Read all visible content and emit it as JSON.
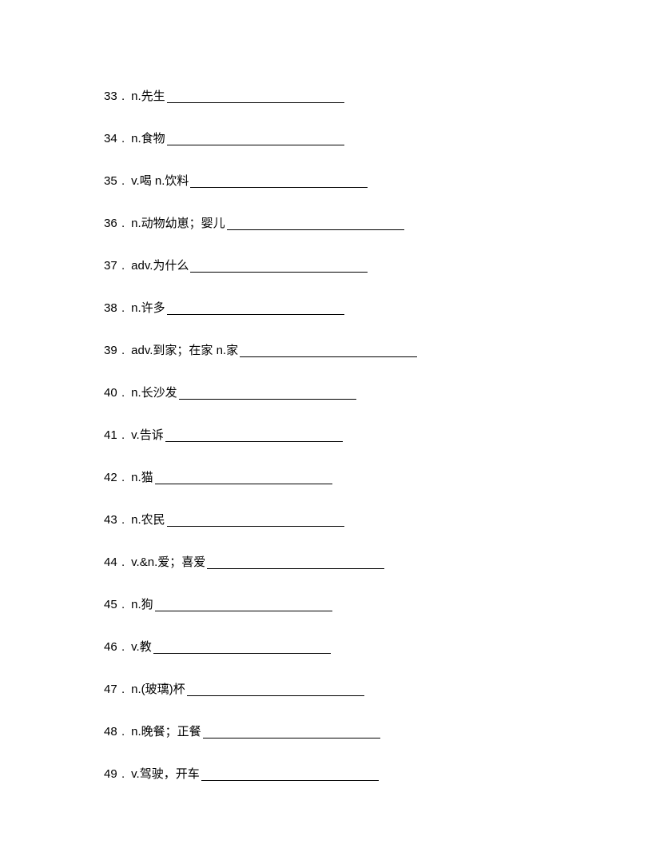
{
  "page": {
    "background_color": "#ffffff",
    "text_color": "#000000",
    "font_size": 15,
    "blank_color": "#000000"
  },
  "items": [
    {
      "num": "33",
      "dot": ".",
      "term": "n.先生",
      "blank_width": 222
    },
    {
      "num": "34",
      "dot": ".",
      "term": "n.食物",
      "blank_width": 222
    },
    {
      "num": "35",
      "dot": ".",
      "term": "v.喝 n.饮料",
      "blank_width": 222
    },
    {
      "num": "36",
      "dot": ".",
      "term": "n.动物幼崽；婴儿",
      "blank_width": 222
    },
    {
      "num": "37",
      "dot": ".",
      "term": "adv.为什么",
      "blank_width": 222
    },
    {
      "num": "38",
      "dot": ".",
      "term": "n.许多",
      "blank_width": 222
    },
    {
      "num": "39",
      "dot": ".",
      "term": "adv.到家；在家 n.家",
      "blank_width": 222
    },
    {
      "num": "40",
      "dot": ".",
      "term": "n.长沙发",
      "blank_width": 222
    },
    {
      "num": "41",
      "dot": ".",
      "term": "v.告诉",
      "blank_width": 222
    },
    {
      "num": "42",
      "dot": ".",
      "term": "n.猫",
      "blank_width": 222
    },
    {
      "num": "43",
      "dot": ".",
      "term": "n.农民",
      "blank_width": 222
    },
    {
      "num": "44",
      "dot": ".",
      "term": "v.&n.爱；喜爱",
      "blank_width": 222
    },
    {
      "num": "45",
      "dot": ".",
      "term": "n.狗",
      "blank_width": 222
    },
    {
      "num": "46",
      "dot": ".",
      "term": "v.教",
      "blank_width": 222
    },
    {
      "num": "47",
      "dot": ".",
      "term": "n.(玻璃)杯",
      "blank_width": 222
    },
    {
      "num": "48",
      "dot": ".",
      "term": "n.晚餐；正餐",
      "blank_width": 222
    },
    {
      "num": "49",
      "dot": ".",
      "term": "v.驾驶，开车",
      "blank_width": 222
    }
  ]
}
